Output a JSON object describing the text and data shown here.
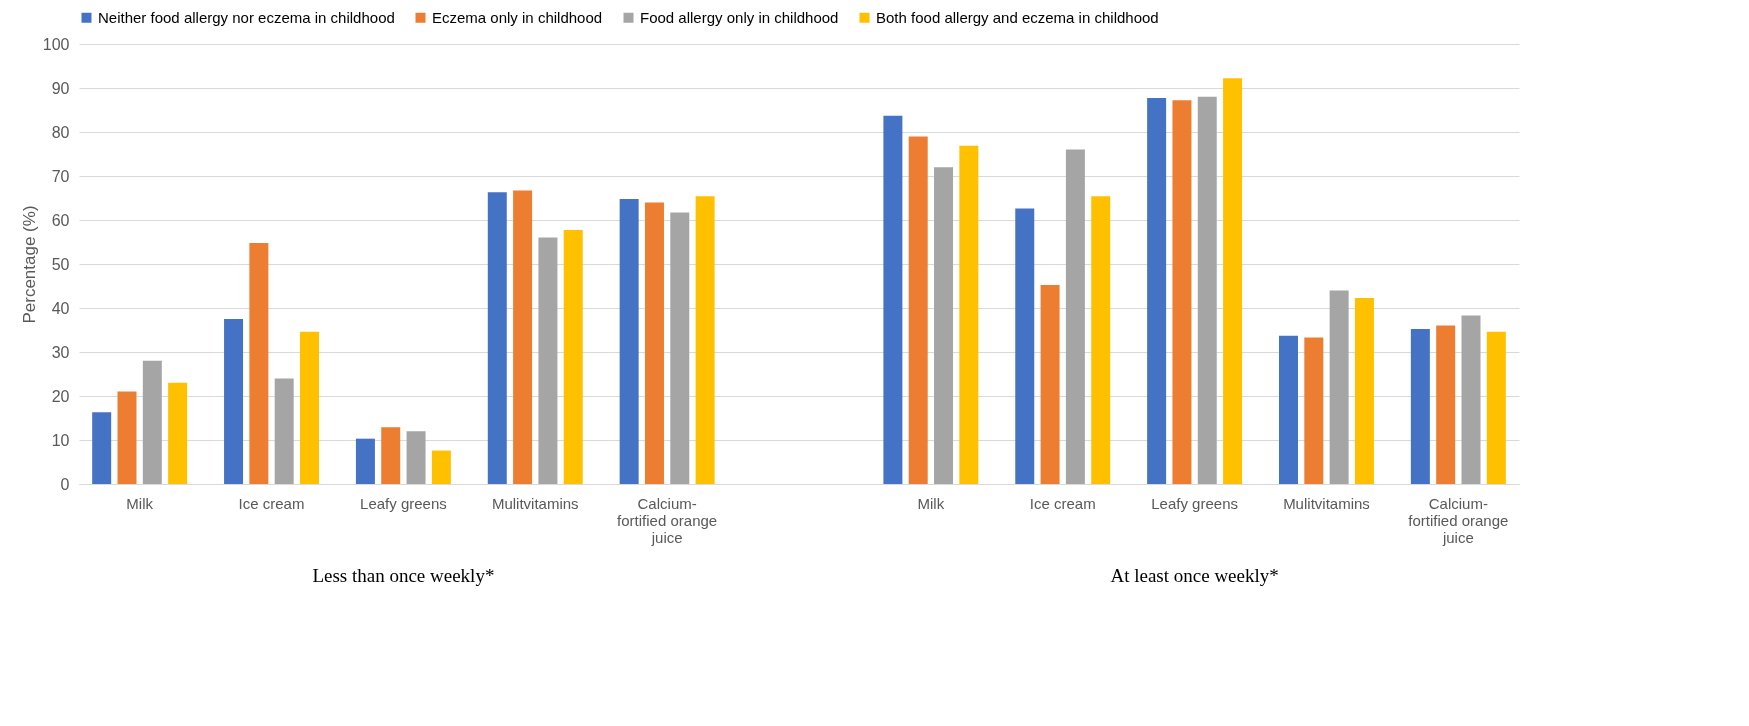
{
  "chart_data": {
    "type": "bar",
    "categories": [
      "Milk",
      "Ice cream",
      "Leafy greens",
      "Mulitvitamins",
      "Calcium-fortified orange juice",
      null,
      "Milk",
      "Ice cream",
      "Leafy greens",
      "Mulitvitamins",
      "Calcium-fortified orange juice"
    ],
    "series": [
      {
        "name": "Neither food allergy nor eczema in childhood",
        "color": "#4472c4",
        "values": [
          16.3,
          37.5,
          10.3,
          66.3,
          64.8,
          null,
          83.7,
          62.6,
          87.7,
          33.7,
          35.2
        ]
      },
      {
        "name": "Eczema only in childhood",
        "color": "#ed7d31",
        "values": [
          21.0,
          54.8,
          12.9,
          66.7,
          64.0,
          null,
          79.0,
          45.2,
          87.2,
          33.3,
          36.0
        ]
      },
      {
        "name": "Food allergy only in childhood",
        "color": "#a5a5a5",
        "values": [
          28.0,
          24.0,
          12.0,
          56.0,
          61.7,
          null,
          72.0,
          76.0,
          88.0,
          44.0,
          38.3
        ]
      },
      {
        "name": "Both food allergy and eczema  in childhood",
        "color": "#ffc000",
        "values": [
          23.0,
          34.6,
          7.6,
          57.7,
          65.4,
          null,
          76.9,
          65.4,
          92.2,
          42.3,
          34.6
        ]
      }
    ],
    "ylabel": "Percentage (%)",
    "ylim": [
      0,
      100
    ],
    "yticks": [
      0,
      10,
      20,
      30,
      40,
      50,
      60,
      70,
      80,
      90,
      100
    ],
    "grid": "y",
    "legend": "top",
    "annotations": [
      "Less than once weekly*",
      "At least once weekly*"
    ]
  }
}
